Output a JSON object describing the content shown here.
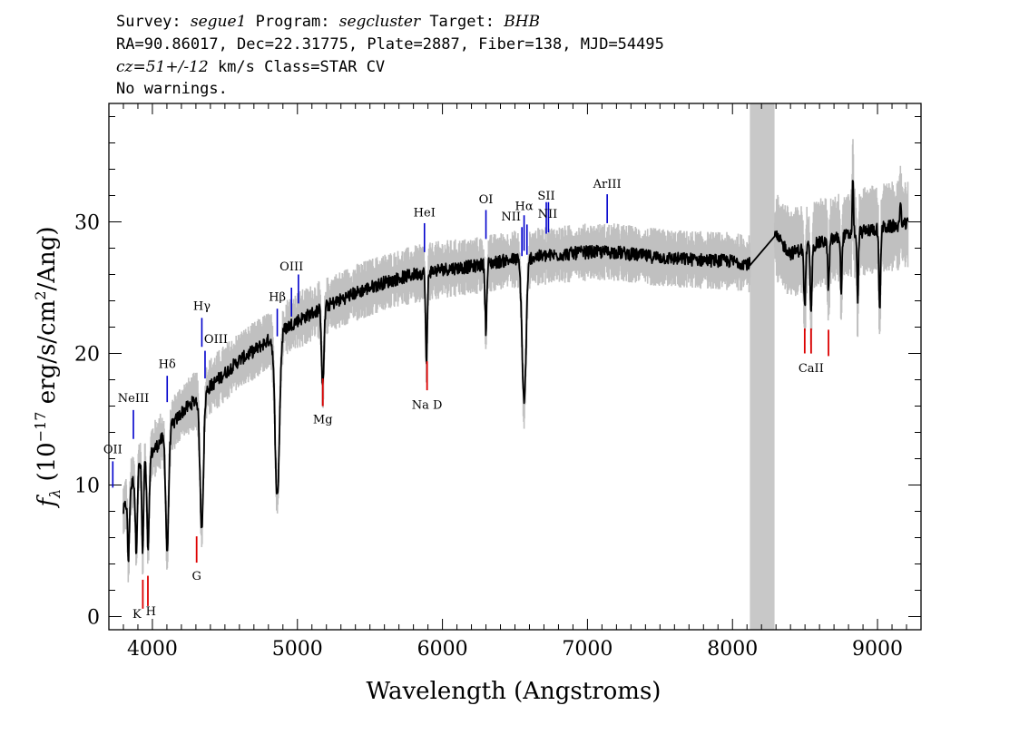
{
  "header": {
    "line1": {
      "survey_label": "Survey: ",
      "survey": "segue1",
      "program_label": " Program: ",
      "program": "segcluster",
      "target_label": " Target: ",
      "target": "BHB"
    },
    "line2": "RA=90.86017, Dec=22.31775, Plate=2887, Fiber=138, MJD=54495",
    "line3": {
      "redshift": "cz=51+/-12",
      "rest": " km/s Class=STAR CV"
    },
    "line4": "No warnings."
  },
  "chart_data": {
    "type": "line",
    "xlabel": "Wavelength (Angstroms)",
    "ylabel": "f_λ (10^-17 erg/s/cm^2/Ang)",
    "ylabel_parts": {
      "f": "f",
      "lambda": "λ",
      "lead": " (10",
      "exp1": "−17",
      "mid": " erg/s/cm",
      "exp2": "2",
      "tail": "/Ang)"
    },
    "xlim": [
      3700,
      9300
    ],
    "ylim": [
      -1,
      39
    ],
    "x_ticks": [
      4000,
      5000,
      6000,
      7000,
      8000,
      9000
    ],
    "y_ticks": [
      0,
      10,
      20,
      30
    ],
    "x_minor_step": 100,
    "y_minor_step": 2,
    "masked_band": [
      8120,
      8290
    ],
    "colors": {
      "flux": "#000000",
      "noise": "#c0c0c0",
      "mask": "#c8c8c8",
      "emission": "#0000cc",
      "absorption": "#dd0000"
    },
    "continuum_anchors": [
      [
        3800,
        8
      ],
      [
        3900,
        11.5
      ],
      [
        4000,
        12.5
      ],
      [
        4100,
        14
      ],
      [
        4200,
        15.5
      ],
      [
        4300,
        16.5
      ],
      [
        4400,
        17.5
      ],
      [
        4500,
        18.5
      ],
      [
        4600,
        19.5
      ],
      [
        4700,
        20.2
      ],
      [
        4800,
        21
      ],
      [
        4900,
        21.8
      ],
      [
        5000,
        22.5
      ],
      [
        5200,
        23.6
      ],
      [
        5400,
        24.6
      ],
      [
        5600,
        25.4
      ],
      [
        5800,
        26
      ],
      [
        6000,
        26.4
      ],
      [
        6200,
        26.6
      ],
      [
        6400,
        27
      ],
      [
        6600,
        27.3
      ],
      [
        6800,
        27.5
      ],
      [
        7000,
        27.7
      ],
      [
        7200,
        27.7
      ],
      [
        7400,
        27.4
      ],
      [
        7600,
        27.2
      ],
      [
        7800,
        27.1
      ],
      [
        8000,
        27
      ],
      [
        8120,
        26.8
      ],
      [
        8290,
        29
      ],
      [
        8400,
        27.6
      ],
      [
        8600,
        28.4
      ],
      [
        8800,
        29
      ],
      [
        9000,
        29.5
      ],
      [
        9200,
        29.8
      ]
    ],
    "absorption_features": [
      {
        "center": 3835,
        "depth": 5,
        "width": 6
      },
      {
        "center": 3889,
        "depth": 6,
        "width": 7
      },
      {
        "center": 3933,
        "depth": 7,
        "width": 6
      },
      {
        "center": 3970,
        "depth": 7,
        "width": 8
      },
      {
        "center": 4102,
        "depth": 9,
        "width": 10
      },
      {
        "center": 4340,
        "depth": 10,
        "width": 12
      },
      {
        "center": 4861,
        "depth": 12.5,
        "width": 15
      },
      {
        "center": 5175,
        "depth": 6,
        "width": 8
      },
      {
        "center": 5890,
        "depth": 7,
        "width": 6
      },
      {
        "center": 6300,
        "depth": 5,
        "width": 6
      },
      {
        "center": 6563,
        "depth": 11,
        "width": 14
      },
      {
        "center": 8498,
        "depth": 4.5,
        "width": 6
      },
      {
        "center": 8542,
        "depth": 5,
        "width": 6
      },
      {
        "center": 8662,
        "depth": 3.5,
        "width": 6
      },
      {
        "center": 8750,
        "depth": 4,
        "width": 5
      },
      {
        "center": 8863,
        "depth": 5,
        "width": 5
      },
      {
        "center": 9015,
        "depth": 6,
        "width": 6
      }
    ],
    "emission_spikes": [
      {
        "center": 8830,
        "height": 4.5,
        "width": 4
      },
      {
        "center": 9160,
        "height": 1.5,
        "width": 5
      }
    ],
    "emission_lines": [
      {
        "label": "OII",
        "x": 3727,
        "y1": 9.8,
        "y2": 11.8,
        "label_y": 12.4,
        "label_dx": 0
      },
      {
        "label": "NeIII",
        "x": 3869,
        "y1": 13.5,
        "y2": 15.7,
        "label_y": 16.3,
        "label_dx": 0
      },
      {
        "label": "Hδ",
        "x": 4102,
        "y1": 16.3,
        "y2": 18.3,
        "label_y": 18.9,
        "label_dx": 0
      },
      {
        "label": "Hγ",
        "x": 4341,
        "y1": 20.5,
        "y2": 22.7,
        "label_y": 23.3,
        "label_dx": 0
      },
      {
        "label": "OIII",
        "x": 4363,
        "y1": 18.1,
        "y2": 20.2,
        "label_y": 20.8,
        "label_dx": 12
      },
      {
        "label": "Hβ",
        "x": 4861,
        "y1": 21.3,
        "y2": 23.4,
        "label_y": 24,
        "label_dx": 0
      },
      {
        "label": "OIII",
        "x": 4959,
        "y1": 22.8,
        "y2": 25,
        "label_y": 26.3,
        "label_dx": 0
      },
      {
        "label": "OIII",
        "x": 5007,
        "y1": 23.8,
        "y2": 26,
        "label_y": 26.3,
        "label_dx": 0,
        "no_label": true
      },
      {
        "label": "HeI",
        "x": 5876,
        "y1": 27.7,
        "y2": 29.9,
        "label_y": 30.4,
        "label_dx": 0
      },
      {
        "label": "OI",
        "x": 6300,
        "y1": 28.7,
        "y2": 30.9,
        "label_y": 31.4,
        "label_dx": 0
      },
      {
        "label": "NII",
        "x": 6548,
        "y1": 27.4,
        "y2": 29.6,
        "label_y": 30.1,
        "label_dx": -12
      },
      {
        "label": "Hα",
        "x": 6563,
        "y1": 27.8,
        "y2": 30.5,
        "label_y": 30.9,
        "label_dx": 0
      },
      {
        "label": "NII",
        "x": 6583,
        "y1": 27.5,
        "y2": 29.8,
        "label_y": 29.8,
        "label_dx": 0,
        "no_label": true
      },
      {
        "label": "SII",
        "x": 6716,
        "y1": 29.1,
        "y2": 31.5,
        "label_y": 31.7,
        "label_dx": 0
      },
      {
        "label": "SII",
        "x": 6731,
        "y1": 29.2,
        "y2": 31.5,
        "label_y": 31.7,
        "label_dx": 0,
        "no_label": true
      },
      {
        "label": "NII",
        "x": 6725,
        "y1": 29.2,
        "y2": 30.5,
        "label_y": 30.3,
        "label_dx": 0,
        "label_only": true
      },
      {
        "label": "ArIII",
        "x": 7136,
        "y1": 29.9,
        "y2": 32.1,
        "label_y": 32.6,
        "label_dx": 0
      }
    ],
    "absorption_lines": [
      {
        "label": "K",
        "x": 3934,
        "y1": 0.6,
        "y2": 2.8,
        "label_x": 3893,
        "label_y": -0.1
      },
      {
        "label": "H",
        "x": 3969,
        "y1": 0.8,
        "y2": 3.1,
        "label_x": 3990,
        "label_y": 0.1
      },
      {
        "label": "G",
        "x": 4305,
        "y1": 4.1,
        "y2": 6.1,
        "label_x": 4305,
        "label_y": 2.8
      },
      {
        "label": "Mg",
        "x": 5175,
        "y1": 16,
        "y2": 18.1,
        "label_x": 5175,
        "label_y": 14.7
      },
      {
        "label": "Na D",
        "x": 5894,
        "y1": 17.2,
        "y2": 19.4,
        "label_x": 5894,
        "label_y": 15.8
      },
      {
        "label": "CaII",
        "x": 8498,
        "y1": 20,
        "y2": 21.9,
        "label_x": 8542,
        "label_y": 18.6
      },
      {
        "label": "CaII",
        "x": 8542,
        "y1": 20,
        "y2": 21.9,
        "no_label": true
      },
      {
        "label": "CaII",
        "x": 8662,
        "y1": 19.8,
        "y2": 21.8,
        "no_label": true
      }
    ]
  }
}
